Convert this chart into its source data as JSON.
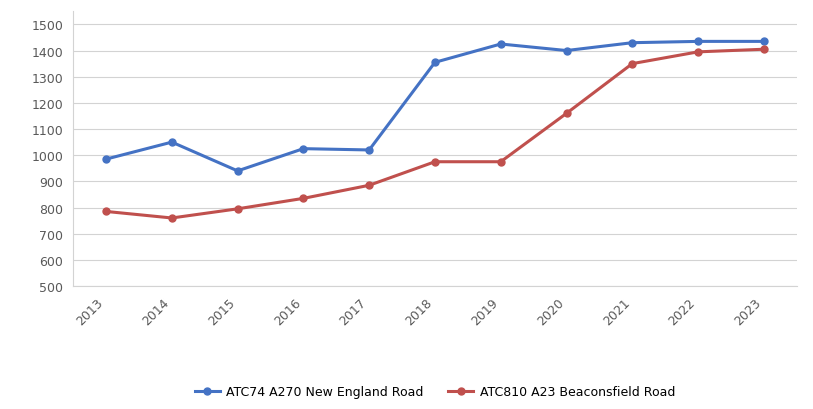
{
  "years": [
    2013,
    2014,
    2015,
    2016,
    2017,
    2018,
    2019,
    2020,
    2021,
    2022,
    2023
  ],
  "blue_series": {
    "label": "ATC74 A270 New England Road",
    "values": [
      985,
      1050,
      940,
      1025,
      1020,
      1355,
      1425,
      1400,
      1430,
      1435,
      1435
    ],
    "color": "#4472C4",
    "marker": "o"
  },
  "red_series": {
    "label": "ATC810 A23 Beaconsfield Road",
    "values": [
      785,
      760,
      795,
      835,
      885,
      975,
      975,
      1160,
      1350,
      1395,
      1405
    ],
    "color": "#C0504D",
    "marker": "o"
  },
  "ylim": [
    500,
    1550
  ],
  "yticks": [
    500,
    600,
    700,
    800,
    900,
    1000,
    1100,
    1200,
    1300,
    1400,
    1500
  ],
  "grid_color": "#D3D3D3",
  "background_color": "#FFFFFF",
  "linewidth": 2.2,
  "markersize": 5
}
